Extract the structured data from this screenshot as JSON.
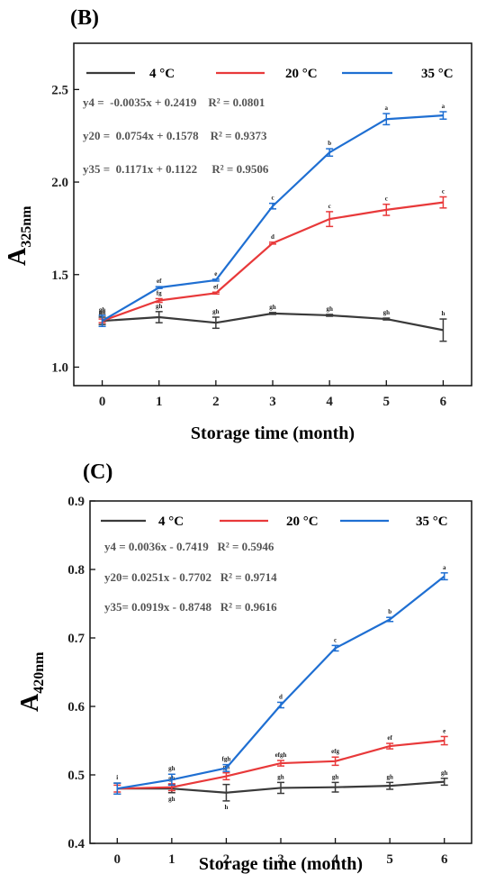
{
  "chart_data": [
    {
      "type": "line",
      "panel_label": "(B)",
      "ylabel_main": "A",
      "ylabel_sub": "325nm",
      "xlabel": "Storage time (month)",
      "x": [
        0,
        1,
        2,
        3,
        4,
        5,
        6
      ],
      "xlim": [
        -0.5,
        6.5
      ],
      "xticks": [
        "0",
        "1",
        "2",
        "3",
        "4",
        "5",
        "6"
      ],
      "ylim": [
        0.9,
        2.75
      ],
      "yticks": [
        1.0,
        1.5,
        2.0,
        2.5
      ],
      "ytick_labels": [
        "1.0",
        "1.5",
        "2.0",
        "2.5"
      ],
      "legend": [
        "4 °C",
        "20 °C",
        "35 °C"
      ],
      "legend_placement": "top",
      "equations": [
        "y4 =  -0.0035x + 0.2419    R² = 0.0801",
        "y20 =  0.0754x + 0.1578    R² = 0.9373",
        "y35 =  0.1171x + 0.1122     R² = 0.9506"
      ],
      "series": [
        {
          "name": "4 °C",
          "color": "#3a3a3a",
          "values": [
            1.25,
            1.27,
            1.24,
            1.29,
            1.28,
            1.26,
            1.2
          ],
          "errors": [
            0.02,
            0.03,
            0.03,
            0.005,
            0.005,
            0.005,
            0.06
          ],
          "labels": [
            "gh",
            "gh",
            "gh",
            "gh",
            "gh",
            "gh",
            "h"
          ]
        },
        {
          "name": "20 °C",
          "color": "#e8393a",
          "values": [
            1.25,
            1.36,
            1.4,
            1.67,
            1.8,
            1.85,
            1.89
          ],
          "errors": [
            0.01,
            0.01,
            0.005,
            0.005,
            0.04,
            0.03,
            0.03
          ],
          "labels": [
            "gh",
            "fg",
            "ef",
            "d",
            "c",
            "c",
            "c"
          ]
        },
        {
          "name": "35 °C",
          "color": "#1f6fd2",
          "values": [
            1.25,
            1.43,
            1.47,
            1.87,
            2.16,
            2.34,
            2.36
          ],
          "errors": [
            0.03,
            0.005,
            0.005,
            0.015,
            0.02,
            0.03,
            0.02
          ],
          "labels": [
            "gh",
            "ef",
            "e",
            "c",
            "b",
            "a",
            "a"
          ]
        }
      ]
    },
    {
      "type": "line",
      "panel_label": "(C)",
      "ylabel_main": "A",
      "ylabel_sub": "420nm",
      "xlabel": "Storage time (month)",
      "x": [
        0,
        1,
        2,
        3,
        4,
        5,
        6
      ],
      "xlim": [
        -0.5,
        6.5
      ],
      "xticks": [
        "0",
        "1",
        "2",
        "3",
        "4",
        "5",
        "6"
      ],
      "ylim": [
        0.4,
        0.9
      ],
      "yticks": [
        0.4,
        0.5,
        0.6,
        0.7,
        0.8,
        0.9
      ],
      "ytick_labels": [
        "0.4",
        "0.5",
        "0.6",
        "0.7",
        "0.8",
        "0.9"
      ],
      "legend": [
        "4 °C",
        "20 °C",
        "35 °C"
      ],
      "legend_placement": "top",
      "equations": [
        "y4 = 0.0036x - 0.7419   R² = 0.5946",
        "y20= 0.0251x - 0.7702   R² = 0.9714",
        "y35= 0.0919x - 0.8748   R² = 0.9616"
      ],
      "series": [
        {
          "name": "4 °C",
          "color": "#3a3a3a",
          "values": [
            0.48,
            0.48,
            0.474,
            0.481,
            0.482,
            0.484,
            0.49
          ],
          "errors": [
            0.008,
            0.006,
            0.012,
            0.008,
            0.007,
            0.005,
            0.005
          ],
          "labels": [
            "i",
            "gh",
            "h",
            "gh",
            "gh",
            "gh",
            "gh"
          ]
        },
        {
          "name": "20 °C",
          "color": "#e8393a",
          "values": [
            0.48,
            0.482,
            0.498,
            0.517,
            0.52,
            0.542,
            0.55
          ],
          "errors": [
            0.005,
            0.005,
            0.005,
            0.004,
            0.006,
            0.004,
            0.006
          ],
          "labels": [
            "",
            "gh",
            "gh",
            "efgh",
            "efg",
            "ef",
            "e"
          ]
        },
        {
          "name": "35 °C",
          "color": "#1f6fd2",
          "values": [
            0.48,
            0.493,
            0.51,
            0.602,
            0.685,
            0.727,
            0.79
          ],
          "errors": [
            0.008,
            0.008,
            0.005,
            0.004,
            0.004,
            0.003,
            0.005
          ],
          "labels": [
            "",
            "gh",
            "fgh",
            "d",
            "c",
            "b",
            "a"
          ]
        }
      ]
    }
  ]
}
